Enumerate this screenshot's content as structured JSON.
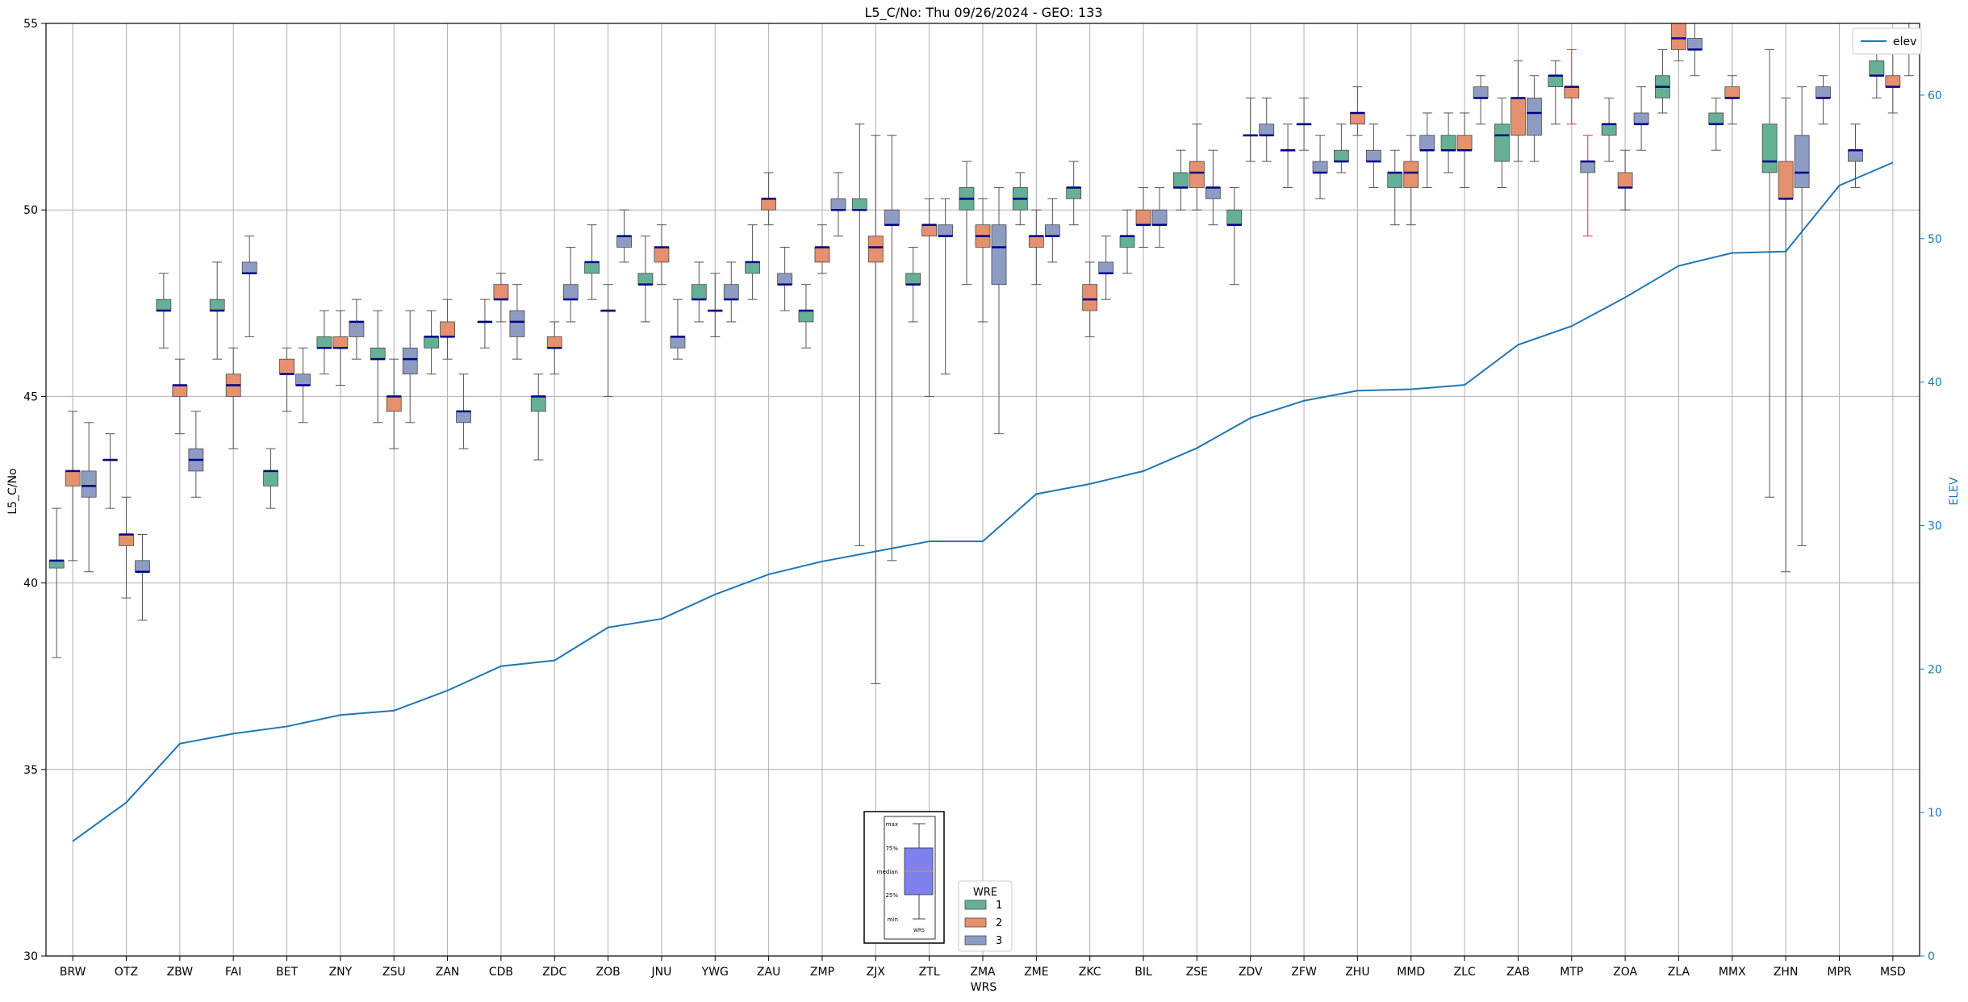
{
  "chart_data": {
    "type": "box",
    "title": "L5_C/No: Thu 09/26/2024 - GEO: 133",
    "xlabel": "WRS",
    "ylabel": "L5_C/No",
    "y2label": "ELEV",
    "ylim": [
      30,
      55
    ],
    "y2lim": [
      0,
      65
    ],
    "yticks": [
      30,
      35,
      40,
      45,
      50,
      55
    ],
    "y2ticks": [
      0,
      10,
      20,
      30,
      40,
      50,
      60
    ],
    "grid": true,
    "categories": [
      "BRW",
      "OTZ",
      "ZBW",
      "FAI",
      "BET",
      "ZNY",
      "ZSU",
      "ZAN",
      "CDB",
      "ZDC",
      "ZOB",
      "JNU",
      "YWG",
      "ZAU",
      "ZMP",
      "ZJX",
      "ZTL",
      "ZMA",
      "ZME",
      "ZKC",
      "BIL",
      "ZSE",
      "ZDV",
      "ZFW",
      "ZHU",
      "MMD",
      "ZLC",
      "ZAB",
      "MTP",
      "ZOA",
      "ZLA",
      "MMX",
      "ZHN",
      "MPR",
      "MSD"
    ],
    "legend_box": {
      "title": "WRE",
      "placement": "bottom-center",
      "entries": [
        {
          "name": "1",
          "color": "#66b096"
        },
        {
          "name": "2",
          "color": "#e5906e"
        },
        {
          "name": "3",
          "color": "#8e9cc4"
        }
      ]
    },
    "legend_line": {
      "placement": "top-right",
      "entries": [
        {
          "name": "elev",
          "color": "#1f77b4"
        }
      ]
    },
    "inset_key": {
      "labels": [
        "max",
        "75%",
        "median",
        "25%",
        "min"
      ],
      "xlabel": "WRS"
    },
    "colors": {
      "wre1": "#66b096",
      "wre2": "#e5906e",
      "wre3": "#8e9cc4",
      "median": "#00008b",
      "elev": "#1f77b4",
      "grid": "#b0b0b0",
      "whisker_alt": "#e0303a"
    },
    "elev": [
      8,
      10.7,
      14.8,
      15.5,
      16,
      16.8,
      17.1,
      18.5,
      20.2,
      20.6,
      22.9,
      23.5,
      25.2,
      26.6,
      27.5,
      28.2,
      28.9,
      28.9,
      32.2,
      32.9,
      33.8,
      35.4,
      37.5,
      38.7,
      39.4,
      39.5,
      39.8,
      42.6,
      43.9,
      45.9,
      48.1,
      49,
      49.1,
      53.7,
      55.3
    ],
    "boxes": [
      [
        {
          "wre": 1,
          "min": 38,
          "q1": 40.4,
          "med": 40.6,
          "q3": 40.6,
          "max": 42
        },
        {
          "wre": 2,
          "min": 40.6,
          "q1": 42.6,
          "med": 43,
          "q3": 43,
          "max": 44.6
        },
        {
          "wre": 3,
          "min": 40.3,
          "q1": 42.3,
          "med": 42.6,
          "q3": 43,
          "max": 44.3
        }
      ],
      [
        {
          "wre": 1,
          "min": 42,
          "q1": 43.3,
          "med": 43.3,
          "q3": 43.3,
          "max": 44
        },
        {
          "wre": 2,
          "min": 39.6,
          "q1": 41,
          "med": 41.3,
          "q3": 41.3,
          "max": 42.3
        },
        {
          "wre": 3,
          "min": 39,
          "q1": 40.3,
          "med": 40.3,
          "q3": 40.6,
          "max": 41.3
        }
      ],
      [
        {
          "wre": 1,
          "min": 46.3,
          "q1": 47.3,
          "med": 47.3,
          "q3": 47.6,
          "max": 48.3
        },
        {
          "wre": 2,
          "min": 44,
          "q1": 45,
          "med": 45.3,
          "q3": 45.3,
          "max": 46
        },
        {
          "wre": 3,
          "min": 42.3,
          "q1": 43,
          "med": 43.3,
          "q3": 43.6,
          "max": 44.6
        }
      ],
      [
        {
          "wre": 1,
          "min": 46,
          "q1": 47.3,
          "med": 47.3,
          "q3": 47.6,
          "max": 48.6
        },
        {
          "wre": 2,
          "min": 43.6,
          "q1": 45,
          "med": 45.3,
          "q3": 45.6,
          "max": 46.3
        },
        {
          "wre": 3,
          "min": 46.6,
          "q1": 48.3,
          "med": 48.3,
          "q3": 48.6,
          "max": 49.3
        }
      ],
      [
        {
          "wre": 1,
          "min": 42,
          "q1": 42.6,
          "med": 43,
          "q3": 43,
          "max": 43.6
        },
        {
          "wre": 2,
          "min": 44.6,
          "q1": 45.6,
          "med": 45.6,
          "q3": 46,
          "max": 46.3
        },
        {
          "wre": 3,
          "min": 44.3,
          "q1": 45.3,
          "med": 45.3,
          "q3": 45.6,
          "max": 46.3
        }
      ],
      [
        {
          "wre": 1,
          "min": 45.6,
          "q1": 46.3,
          "med": 46.3,
          "q3": 46.6,
          "max": 47.3
        },
        {
          "wre": 2,
          "min": 45.3,
          "q1": 46.3,
          "med": 46.3,
          "q3": 46.6,
          "max": 47.3
        },
        {
          "wre": 3,
          "min": 46,
          "q1": 46.6,
          "med": 47,
          "q3": 47,
          "max": 47.6
        }
      ],
      [
        {
          "wre": 1,
          "min": 44.3,
          "q1": 46,
          "med": 46,
          "q3": 46.3,
          "max": 47.3
        },
        {
          "wre": 2,
          "min": 43.6,
          "q1": 44.6,
          "med": 45,
          "q3": 45,
          "max": 46
        },
        {
          "wre": 3,
          "min": 44.3,
          "q1": 45.6,
          "med": 46,
          "q3": 46.3,
          "max": 47.3
        }
      ],
      [
        {
          "wre": 1,
          "min": 45.6,
          "q1": 46.3,
          "med": 46.6,
          "q3": 46.6,
          "max": 47.3
        },
        {
          "wre": 2,
          "min": 46,
          "q1": 46.6,
          "med": 46.6,
          "q3": 47,
          "max": 47.6
        },
        {
          "wre": 3,
          "min": 43.6,
          "q1": 44.3,
          "med": 44.6,
          "q3": 44.6,
          "max": 45.6
        }
      ],
      [
        {
          "wre": 1,
          "min": 46.3,
          "q1": 47,
          "med": 47,
          "q3": 47,
          "max": 47.6
        },
        {
          "wre": 2,
          "min": 47,
          "q1": 47.6,
          "med": 47.6,
          "q3": 48,
          "max": 48.3
        },
        {
          "wre": 3,
          "min": 46,
          "q1": 46.6,
          "med": 47,
          "q3": 47.3,
          "max": 48
        }
      ],
      [
        {
          "wre": 1,
          "min": 43.3,
          "q1": 44.6,
          "med": 45,
          "q3": 45,
          "max": 45.6
        },
        {
          "wre": 2,
          "min": 45.6,
          "q1": 46.3,
          "med": 46.3,
          "q3": 46.6,
          "max": 47
        },
        {
          "wre": 3,
          "min": 47,
          "q1": 47.6,
          "med": 47.6,
          "q3": 48,
          "max": 49
        }
      ],
      [
        {
          "wre": 1,
          "min": 47.6,
          "q1": 48.3,
          "med": 48.6,
          "q3": 48.6,
          "max": 49.6
        },
        {
          "wre": 2,
          "min": 45,
          "q1": 47.3,
          "med": 47.3,
          "q3": 47.3,
          "max": 48
        },
        {
          "wre": 3,
          "min": 48.6,
          "q1": 49,
          "med": 49.3,
          "q3": 49.3,
          "max": 50
        }
      ],
      [
        {
          "wre": 1,
          "min": 47,
          "q1": 48,
          "med": 48,
          "q3": 48.3,
          "max": 49.3
        },
        {
          "wre": 2,
          "min": 48,
          "q1": 48.6,
          "med": 49,
          "q3": 49,
          "max": 49.6
        },
        {
          "wre": 3,
          "min": 46,
          "q1": 46.3,
          "med": 46.6,
          "q3": 46.6,
          "max": 47.6
        }
      ],
      [
        {
          "wre": 1,
          "min": 47,
          "q1": 47.6,
          "med": 47.6,
          "q3": 48,
          "max": 48.6
        },
        {
          "wre": 2,
          "min": 46.6,
          "q1": 47.3,
          "med": 47.3,
          "q3": 47.3,
          "max": 48.3
        },
        {
          "wre": 3,
          "min": 47,
          "q1": 47.6,
          "med": 47.6,
          "q3": 48,
          "max": 48.6
        }
      ],
      [
        {
          "wre": 1,
          "min": 47.6,
          "q1": 48.3,
          "med": 48.6,
          "q3": 48.6,
          "max": 49.6
        },
        {
          "wre": 2,
          "min": 49.6,
          "q1": 50,
          "med": 50.3,
          "q3": 50.3,
          "max": 51
        },
        {
          "wre": 3,
          "min": 47.3,
          "q1": 48,
          "med": 48,
          "q3": 48.3,
          "max": 49
        }
      ],
      [
        {
          "wre": 1,
          "min": 46.3,
          "q1": 47,
          "med": 47.3,
          "q3": 47.3,
          "max": 48
        },
        {
          "wre": 2,
          "min": 48.3,
          "q1": 48.6,
          "med": 49,
          "q3": 49,
          "max": 49.6
        },
        {
          "wre": 3,
          "min": 49.3,
          "q1": 50,
          "med": 50,
          "q3": 50.3,
          "max": 51
        }
      ],
      [
        {
          "wre": 1,
          "min": 41,
          "q1": 50,
          "med": 50,
          "q3": 50.3,
          "max": 52.3
        },
        {
          "wre": 2,
          "min": 37.3,
          "q1": 48.6,
          "med": 49,
          "q3": 49.3,
          "max": 52
        },
        {
          "wre": 3,
          "min": 40.6,
          "q1": 49.6,
          "med": 49.6,
          "q3": 50,
          "max": 52
        }
      ],
      [
        {
          "wre": 1,
          "min": 47,
          "q1": 48,
          "med": 48,
          "q3": 48.3,
          "max": 49
        },
        {
          "wre": 2,
          "min": 45,
          "q1": 49.3,
          "med": 49.6,
          "q3": 49.6,
          "max": 50.3
        },
        {
          "wre": 3,
          "min": 45.6,
          "q1": 49.3,
          "med": 49.3,
          "q3": 49.6,
          "max": 50.3
        }
      ],
      [
        {
          "wre": 1,
          "min": 48,
          "q1": 50,
          "med": 50.3,
          "q3": 50.6,
          "max": 51.3
        },
        {
          "wre": 2,
          "min": 47,
          "q1": 49,
          "med": 49.3,
          "q3": 49.6,
          "max": 50.3
        },
        {
          "wre": 3,
          "min": 44,
          "q1": 48,
          "med": 49,
          "q3": 49.6,
          "max": 50.6
        }
      ],
      [
        {
          "wre": 1,
          "min": 49.6,
          "q1": 50,
          "med": 50.3,
          "q3": 50.6,
          "max": 51
        },
        {
          "wre": 2,
          "min": 48,
          "q1": 49,
          "med": 49.3,
          "q3": 49.3,
          "max": 50
        },
        {
          "wre": 3,
          "min": 48.6,
          "q1": 49.3,
          "med": 49.3,
          "q3": 49.6,
          "max": 50.3
        }
      ],
      [
        {
          "wre": 1,
          "min": 49.6,
          "q1": 50.3,
          "med": 50.6,
          "q3": 50.6,
          "max": 51.3
        },
        {
          "wre": 2,
          "min": 46.6,
          "q1": 47.3,
          "med": 47.6,
          "q3": 48,
          "max": 48.6
        },
        {
          "wre": 3,
          "min": 47.6,
          "q1": 48.3,
          "med": 48.3,
          "q3": 48.6,
          "max": 49.3
        }
      ],
      [
        {
          "wre": 1,
          "min": 48.3,
          "q1": 49,
          "med": 49.3,
          "q3": 49.3,
          "max": 50
        },
        {
          "wre": 2,
          "min": 49,
          "q1": 49.6,
          "med": 49.6,
          "q3": 50,
          "max": 50.6
        },
        {
          "wre": 3,
          "min": 49,
          "q1": 49.6,
          "med": 49.6,
          "q3": 50,
          "max": 50.6
        }
      ],
      [
        {
          "wre": 1,
          "min": 50,
          "q1": 50.6,
          "med": 50.6,
          "q3": 51,
          "max": 51.6
        },
        {
          "wre": 2,
          "min": 50,
          "q1": 50.6,
          "med": 51,
          "q3": 51.3,
          "max": 52.3
        },
        {
          "wre": 3,
          "min": 49.6,
          "q1": 50.3,
          "med": 50.6,
          "q3": 50.6,
          "max": 51.6
        }
      ],
      [
        {
          "wre": 1,
          "min": 48,
          "q1": 49.6,
          "med": 49.6,
          "q3": 50,
          "max": 50.6
        },
        {
          "wre": 2,
          "min": 51.3,
          "q1": 52,
          "med": 52,
          "q3": 52,
          "max": 53
        },
        {
          "wre": 3,
          "min": 51.3,
          "q1": 52,
          "med": 52,
          "q3": 52.3,
          "max": 53
        }
      ],
      [
        {
          "wre": 1,
          "min": 50.6,
          "q1": 51.6,
          "med": 51.6,
          "q3": 51.6,
          "max": 52.3
        },
        {
          "wre": 2,
          "min": 51.6,
          "q1": 52.3,
          "med": 52.3,
          "q3": 52.3,
          "max": 53
        },
        {
          "wre": 3,
          "min": 50.3,
          "q1": 51,
          "med": 51,
          "q3": 51.3,
          "max": 52
        }
      ],
      [
        {
          "wre": 1,
          "min": 51,
          "q1": 51.3,
          "med": 51.3,
          "q3": 51.6,
          "max": 52.3
        },
        {
          "wre": 2,
          "min": 52,
          "q1": 52.3,
          "med": 52.6,
          "q3": 52.6,
          "max": 53.3
        },
        {
          "wre": 3,
          "min": 50.6,
          "q1": 51.3,
          "med": 51.3,
          "q3": 51.6,
          "max": 52.3
        }
      ],
      [
        {
          "wre": 1,
          "min": 49.6,
          "q1": 50.6,
          "med": 51,
          "q3": 51,
          "max": 51.6
        },
        {
          "wre": 2,
          "min": 49.6,
          "q1": 50.6,
          "med": 51,
          "q3": 51.3,
          "max": 52
        },
        {
          "wre": 3,
          "min": 50.6,
          "q1": 51.6,
          "med": 51.6,
          "q3": 52,
          "max": 52.6
        }
      ],
      [
        {
          "wre": 1,
          "min": 51,
          "q1": 51.6,
          "med": 51.6,
          "q3": 52,
          "max": 52.6
        },
        {
          "wre": 2,
          "min": 50.6,
          "q1": 51.6,
          "med": 51.6,
          "q3": 52,
          "max": 52.6
        },
        {
          "wre": 3,
          "min": 52.3,
          "q1": 53,
          "med": 53,
          "q3": 53.3,
          "max": 53.6
        }
      ],
      [
        {
          "wre": 1,
          "min": 50.6,
          "q1": 51.3,
          "med": 52,
          "q3": 52.3,
          "max": 53
        },
        {
          "wre": 2,
          "min": 51.3,
          "q1": 52,
          "med": 53,
          "q3": 53,
          "max": 54
        },
        {
          "wre": 3,
          "min": 51.3,
          "q1": 52,
          "med": 52.6,
          "q3": 53,
          "max": 53.6
        }
      ],
      [
        {
          "wre": 1,
          "min": 52.3,
          "q1": 53.3,
          "med": 53.6,
          "q3": 53.6,
          "max": 54
        },
        {
          "wre": 2,
          "min": 52.3,
          "q1": 53,
          "med": 53.3,
          "q3": 53.3,
          "max": 54.3,
          "alt": true
        },
        {
          "wre": 3,
          "min": 49.3,
          "q1": 51,
          "med": 51.3,
          "q3": 51.3,
          "max": 52,
          "alt": true
        }
      ],
      [
        {
          "wre": 1,
          "min": 51.3,
          "q1": 52,
          "med": 52.3,
          "q3": 52.3,
          "max": 53
        },
        {
          "wre": 2,
          "min": 50,
          "q1": 50.6,
          "med": 50.6,
          "q3": 51,
          "max": 51.6
        },
        {
          "wre": 3,
          "min": 51.6,
          "q1": 52.3,
          "med": 52.3,
          "q3": 52.6,
          "max": 53.3
        }
      ],
      [
        {
          "wre": 1,
          "min": 52.6,
          "q1": 53,
          "med": 53.3,
          "q3": 53.6,
          "max": 54.3
        },
        {
          "wre": 2,
          "min": 54,
          "q1": 54.3,
          "med": 54.6,
          "q3": 55,
          "max": 55
        },
        {
          "wre": 3,
          "min": 53.6,
          "q1": 54.3,
          "med": 54.3,
          "q3": 54.6,
          "max": 55
        }
      ],
      [
        {
          "wre": 1,
          "min": 51.6,
          "q1": 52.3,
          "med": 52.3,
          "q3": 52.6,
          "max": 53
        },
        {
          "wre": 2,
          "min": 52.3,
          "q1": 53,
          "med": 53,
          "q3": 53.3,
          "max": 53.6
        },
        {
          "wre": 3,
          "min": null
        }
      ],
      [
        {
          "wre": 1,
          "min": 42.3,
          "q1": 51,
          "med": 51.3,
          "q3": 52.3,
          "max": 54.3
        },
        {
          "wre": 2,
          "min": 40.3,
          "q1": 50.3,
          "med": 50.3,
          "q3": 51.3,
          "max": 53
        },
        {
          "wre": 3,
          "min": 41,
          "q1": 50.6,
          "med": 51,
          "q3": 52,
          "max": 53.3
        }
      ],
      [
        {
          "wre": 1,
          "min": null
        },
        {
          "wre": 2,
          "min": null
        },
        {
          "wre": 3,
          "min": 52.3,
          "q1": 53,
          "med": 53,
          "q3": 53.3,
          "max": 53.6,
          "slot": 0
        },
        {
          "wre": 3,
          "min": 50.6,
          "q1": 51.3,
          "med": 51.6,
          "q3": 51.6,
          "max": 52.3,
          "slot": 2
        }
      ],
      [
        {
          "wre": 1,
          "min": 53,
          "q1": 53.6,
          "med": 53.6,
          "q3": 54,
          "max": 54.6
        },
        {
          "wre": 2,
          "min": 52.6,
          "q1": 53.3,
          "med": 53.3,
          "q3": 53.6,
          "max": 54.3
        },
        {
          "wre": 3,
          "min": 53.6,
          "q1": 54.3,
          "med": 54.3,
          "q3": 54.6,
          "max": 55
        }
      ]
    ]
  }
}
